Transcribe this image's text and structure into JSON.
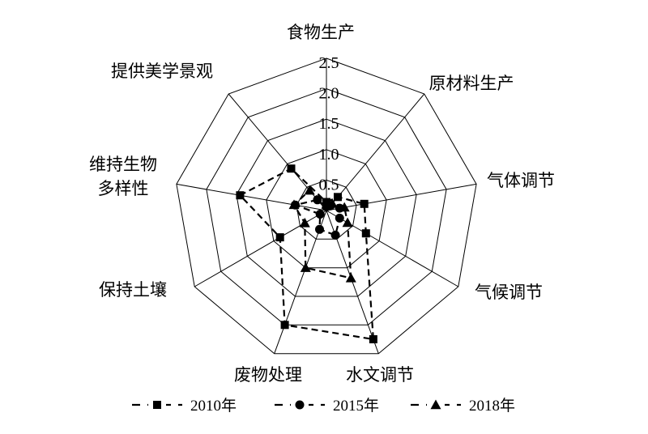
{
  "chart_data": {
    "type": "radar",
    "axes": [
      "食物生产",
      "原材料生产",
      "气体调节",
      "气候调节",
      "水文调节",
      "废物处理",
      "保持土壤",
      "维持生物多样性",
      "提供美学景观"
    ],
    "axis_label_lines": [
      [
        "食物生产"
      ],
      [
        "原材料生产"
      ],
      [
        "气体调节"
      ],
      [
        "气候调节"
      ],
      [
        "水文调节"
      ],
      [
        "废物处理"
      ],
      [
        "保持土壤"
      ],
      [
        "维持生物",
        "多样性"
      ],
      [
        "提供美学景观"
      ]
    ],
    "r_ticks": [
      "0",
      "0.5",
      "1.0",
      "1.5",
      "2.0",
      "2.5"
    ],
    "rlim": [
      0,
      2.5
    ],
    "grid": true,
    "legend_position": "bottom",
    "series": [
      {
        "name": "2010年",
        "marker": "square",
        "values": [
          0.14,
          0.29,
          0.63,
          0.75,
          2.25,
          2.0,
          0.88,
          1.44,
          0.9
        ]
      },
      {
        "name": "2015年",
        "marker": "circle",
        "values": [
          0.06,
          0.1,
          0.22,
          0.25,
          0.43,
          0.33,
          0.12,
          0.52,
          0.23
        ]
      },
      {
        "name": "2018年",
        "marker": "triangle",
        "values": [
          0.1,
          0.15,
          0.3,
          0.4,
          1.18,
          1.0,
          0.41,
          0.54,
          0.43
        ]
      }
    ]
  }
}
